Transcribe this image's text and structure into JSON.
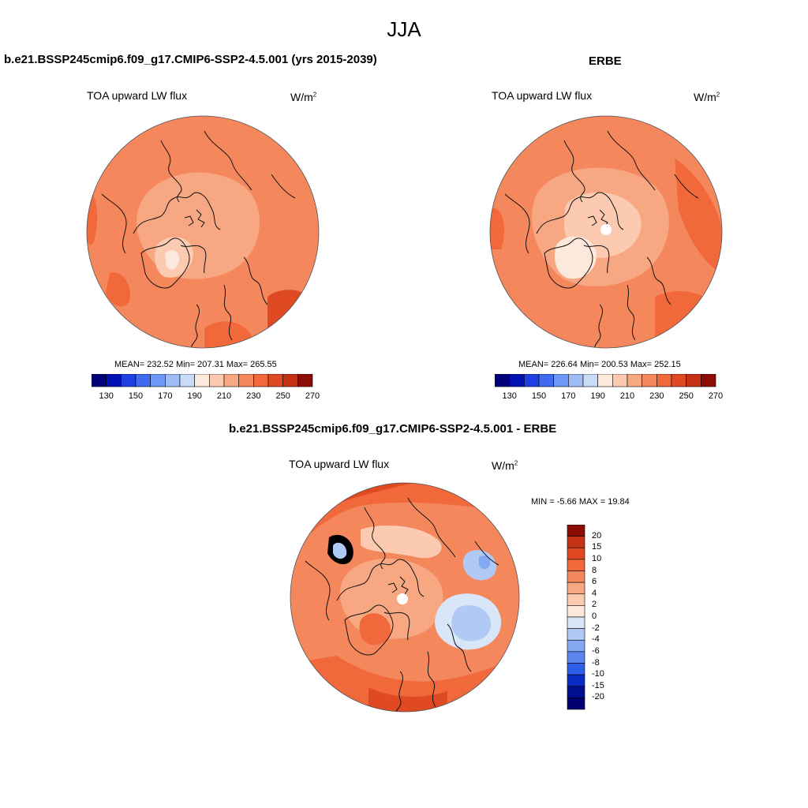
{
  "main_title": "JJA",
  "panels": [
    {
      "title": "b.e21.BSSP245cmip6.f09_g17.CMIP6-SSP2-4.5.001 (yrs 2015-2039)",
      "var_label": "TOA upward LW flux",
      "units": "W/m",
      "units_sup": "2",
      "stats": "MEAN= 232.52  Min= 207.31  Max= 265.55"
    },
    {
      "title": "ERBE",
      "var_label": "TOA upward LW flux",
      "units": "W/m",
      "units_sup": "2",
      "stats": "MEAN= 226.64  Min= 200.53  Max= 252.15"
    },
    {
      "title": "b.e21.BSSP245cmip6.f09_g17.CMIP6-SSP2-4.5.001 - ERBE",
      "var_label": "TOA upward LW flux",
      "units": "W/m",
      "units_sup": "2",
      "stats": "MIN =  -5.66 MAX =  19.84"
    }
  ],
  "chart_data": [
    {
      "type": "heatmap",
      "projection": "north polar stereographic",
      "title": "b.e21.BSSP245cmip6.f09_g17.CMIP6-SSP2-4.5.001 (yrs 2015-2039)",
      "season": "JJA",
      "variable": "TOA upward LW flux",
      "units": "W/m2",
      "mean": 232.52,
      "min": 207.31,
      "max": 265.55,
      "colorbar": {
        "orientation": "horizontal",
        "tick_labels": [
          "130",
          "150",
          "170",
          "190",
          "210",
          "230",
          "250",
          "270"
        ],
        "colors": [
          "#00007a",
          "#0010b3",
          "#1f3fe0",
          "#3f6bf0",
          "#6f97f5",
          "#9fbcf5",
          "#c9dbf7",
          "#fde8dc",
          "#fbcab0",
          "#f7a883",
          "#f5875c",
          "#f1683a",
          "#e04a22",
          "#c43313",
          "#8b0d04"
        ]
      }
    },
    {
      "type": "heatmap",
      "projection": "north polar stereographic",
      "title": "ERBE",
      "season": "JJA",
      "variable": "TOA upward LW flux",
      "units": "W/m2",
      "mean": 226.64,
      "min": 200.53,
      "max": 252.15,
      "colorbar": {
        "orientation": "horizontal",
        "tick_labels": [
          "130",
          "150",
          "170",
          "190",
          "210",
          "230",
          "250",
          "270"
        ],
        "colors": [
          "#00007a",
          "#0010b3",
          "#1f3fe0",
          "#3f6bf0",
          "#6f97f5",
          "#9fbcf5",
          "#c9dbf7",
          "#fde8dc",
          "#fbcab0",
          "#f7a883",
          "#f5875c",
          "#f1683a",
          "#e04a22",
          "#c43313",
          "#8b0d04"
        ]
      }
    },
    {
      "type": "heatmap",
      "projection": "north polar stereographic",
      "title": "b.e21.BSSP245cmip6.f09_g17.CMIP6-SSP2-4.5.001 - ERBE",
      "season": "JJA",
      "variable": "TOA upward LW flux",
      "units": "W/m2",
      "min": -5.66,
      "max": 19.84,
      "colorbar": {
        "orientation": "vertical",
        "tick_labels": [
          "20",
          "15",
          "10",
          "8",
          "6",
          "4",
          "2",
          "0",
          "-2",
          "-4",
          "-6",
          "-8",
          "-10",
          "-15",
          "-20"
        ],
        "colors": [
          "#8b0d04",
          "#c43313",
          "#e04a22",
          "#f1683a",
          "#f5875c",
          "#f7a883",
          "#fbcab0",
          "#fde8dc",
          "#d8e6f8",
          "#b0c9f5",
          "#85a8f2",
          "#5a86ee",
          "#2f5ee8",
          "#0a2cc4",
          "#00108f",
          "#000070"
        ]
      }
    }
  ]
}
